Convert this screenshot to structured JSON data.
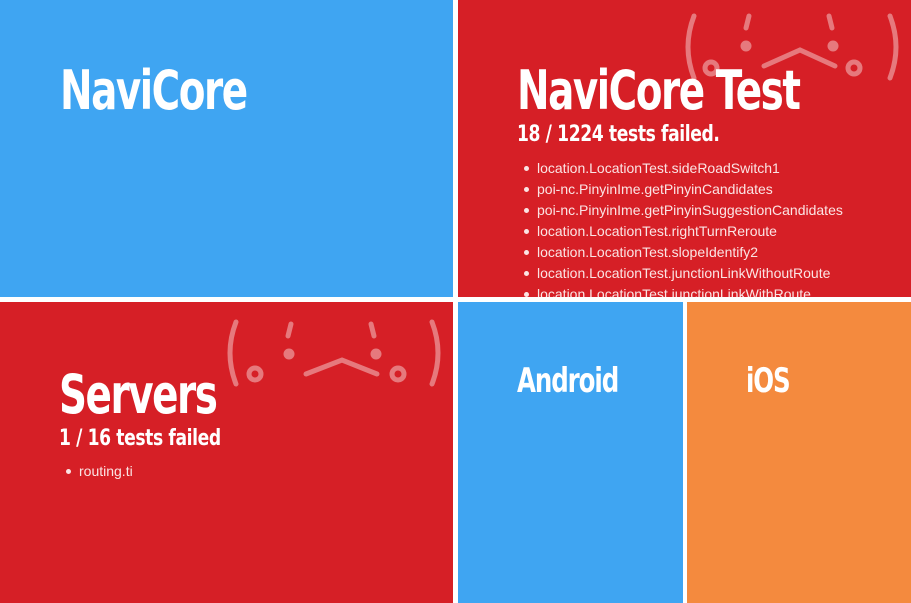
{
  "colors": {
    "blue": "#3fa5f2",
    "red": "#d61f26",
    "orange": "#f48a3e",
    "gap": "#ffffff"
  },
  "tiles": {
    "navicore": {
      "title": "NaviCore",
      "status": "ok",
      "color": "#3fa5f2"
    },
    "navicore_test": {
      "title": "NaviCore Test",
      "summary": "18 / 1224 tests failed.",
      "status": "failed",
      "color": "#d61f26",
      "failures": [
        "location.LocationTest.sideRoadSwitch1",
        "poi-nc.PinyinIme.getPinyinCandidates",
        "poi-nc.PinyinIme.getPinyinSuggestionCandidates",
        "location.LocationTest.rightTurnReroute",
        "location.LocationTest.slopeIdentify2",
        "location.LocationTest.junctionLinkWithoutRoute",
        "location.LocationTest.junctionLinkWithRoute"
      ]
    },
    "servers": {
      "title": "Servers",
      "summary": "1 / 16 tests failed",
      "status": "failed",
      "color": "#d61f26",
      "failures": [
        "routing.ti"
      ]
    },
    "android": {
      "title": "Android",
      "status": "ok",
      "color": "#3fa5f2"
    },
    "ios": {
      "title": "iOS",
      "status": "warning",
      "color": "#f48a3e"
    }
  },
  "icons": {
    "sad_face": "sad-kaomoji-icon"
  }
}
